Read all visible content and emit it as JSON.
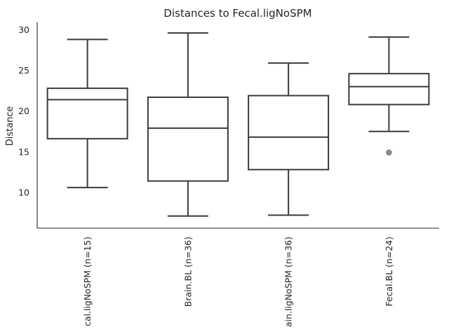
{
  "chart_data": {
    "type": "box",
    "title": "Distances to Fecal.ligNoSPM",
    "xlabel": "",
    "ylabel": "Distance",
    "ylim": [
      5.6,
      30.9
    ],
    "yticks": [
      10,
      15,
      20,
      25,
      30
    ],
    "grid": false,
    "categories": [
      "cal.ligNoSPM (n=15)",
      "Brain.BL (n=36)",
      "ain.ligNoSPM (n=36)",
      "Fecal.BL (n=24)"
    ],
    "boxes": [
      {
        "whisker_low": 10.6,
        "q1": 16.6,
        "median": 21.4,
        "q3": 22.8,
        "whisker_high": 28.8,
        "outliers": []
      },
      {
        "whisker_low": 7.1,
        "q1": 11.4,
        "median": 17.9,
        "q3": 21.7,
        "whisker_high": 29.6,
        "outliers": []
      },
      {
        "whisker_low": 7.2,
        "q1": 12.8,
        "median": 16.8,
        "q3": 21.9,
        "whisker_high": 25.9,
        "outliers": []
      },
      {
        "whisker_low": 17.5,
        "q1": 20.8,
        "median": 23.0,
        "q3": 24.6,
        "whisker_high": 29.1,
        "outliers": [
          14.9
        ]
      }
    ],
    "colors": {
      "box_edge": "#3a3a3a",
      "box_fill": "#ffffff",
      "outlier": "#8c8c8c",
      "axis": "#262626"
    }
  }
}
